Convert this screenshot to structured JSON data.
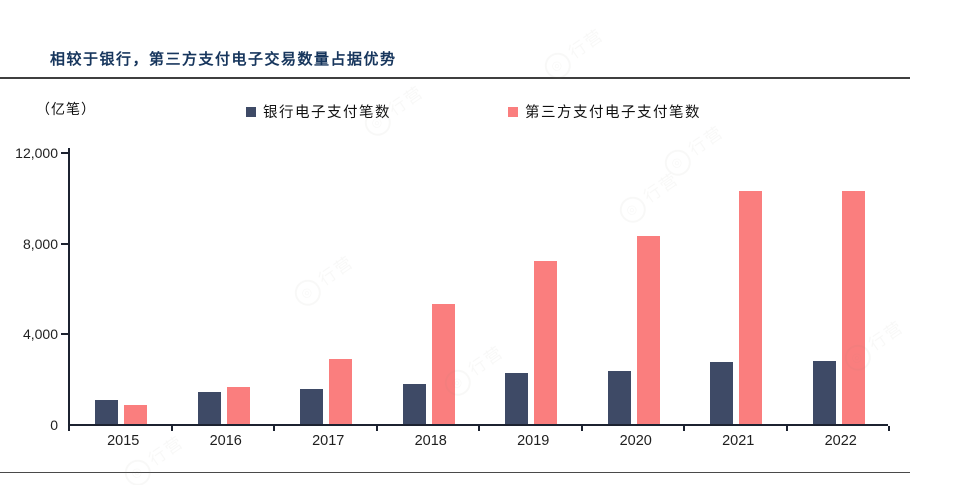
{
  "header": {
    "title": "相较于银行，第三方支付电子交易数量占据优势",
    "unit_label": "（亿笔）"
  },
  "legend": [
    {
      "label": "银行电子支付笔数",
      "color": "#3e4a66"
    },
    {
      "label": "第三方支付电子支付笔数",
      "color": "#fa7e7e"
    }
  ],
  "watermark": {
    "text": "行营",
    "icon": "circle-logo"
  },
  "chart_data": {
    "type": "bar",
    "title": "相较于银行，第三方支付电子交易数量占据优势",
    "xlabel": "",
    "ylabel": "（亿笔）",
    "categories": [
      "2015",
      "2016",
      "2017",
      "2018",
      "2019",
      "2020",
      "2021",
      "2022"
    ],
    "series": [
      {
        "name": "银行电子支付笔数",
        "color": "#3e4a66",
        "values": [
          1052,
          1396,
          1526,
          1751,
          2234,
          2352,
          2750,
          2790
        ]
      },
      {
        "name": "第三方支付电子支付笔数",
        "color": "#fa7e7e",
        "values": [
          821,
          1639,
          2867,
          5306,
          7200,
          8273,
          10283,
          10286
        ]
      }
    ],
    "ylim": [
      0,
      12000
    ],
    "yticks": [
      0,
      4000,
      8000,
      12000
    ],
    "ytick_labels": [
      "0",
      "4,000",
      "8,000",
      "12,000"
    ],
    "grid": false,
    "legend_position": "top"
  }
}
